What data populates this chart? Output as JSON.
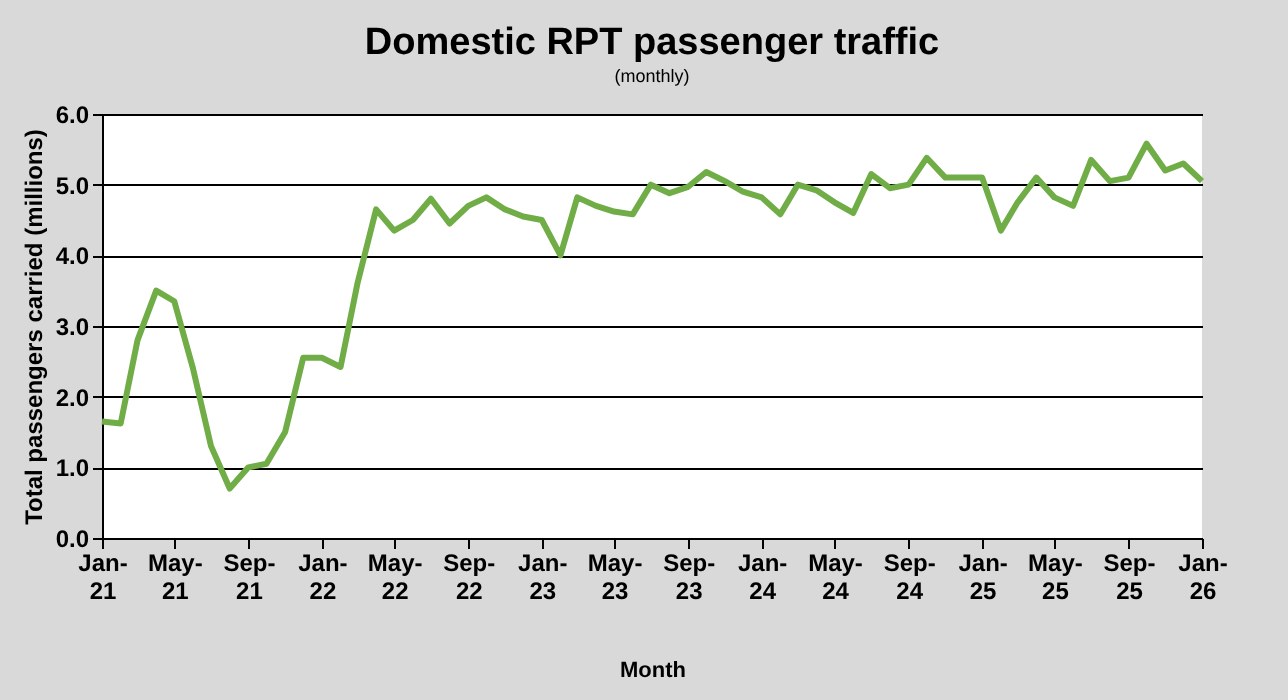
{
  "chart_data": {
    "type": "line",
    "title": "Domestic RPT passenger traffic",
    "subtitle": "(monthly)",
    "xlabel": "Month",
    "ylabel": "Total passengers carried (millions)",
    "x": [
      "2021-01",
      "2021-02",
      "2021-03",
      "2021-04",
      "2021-05",
      "2021-06",
      "2021-07",
      "2021-08",
      "2021-09",
      "2021-10",
      "2021-11",
      "2021-12",
      "2022-01",
      "2022-02",
      "2022-03",
      "2022-04",
      "2022-05",
      "2022-06",
      "2022-07",
      "2022-08",
      "2022-09",
      "2022-10",
      "2022-11",
      "2022-12",
      "2023-01",
      "2023-02",
      "2023-03",
      "2023-04",
      "2023-05",
      "2023-06",
      "2023-07",
      "2023-08",
      "2023-09",
      "2023-10",
      "2023-11",
      "2023-12",
      "2024-01",
      "2024-02",
      "2024-03",
      "2024-04",
      "2024-05",
      "2024-06",
      "2024-07",
      "2024-08",
      "2024-09",
      "2024-10",
      "2024-11",
      "2024-12",
      "2025-01",
      "2025-02",
      "2025-03",
      "2025-04",
      "2025-05",
      "2025-06",
      "2025-07",
      "2025-08",
      "2025-09",
      "2025-10",
      "2025-11",
      "2025-12",
      "2026-01"
    ],
    "series": [
      {
        "color": "#70ad47",
        "values": [
          1.65,
          1.62,
          2.8,
          3.5,
          3.35,
          2.4,
          1.3,
          0.7,
          1.0,
          1.05,
          1.5,
          2.55,
          2.55,
          2.42,
          3.6,
          4.65,
          4.35,
          4.5,
          4.8,
          4.45,
          4.7,
          4.82,
          4.65,
          4.55,
          4.5,
          4.0,
          4.82,
          4.7,
          4.62,
          4.58,
          5.0,
          4.88,
          4.97,
          5.18,
          5.05,
          4.9,
          4.82,
          4.58,
          5.0,
          4.92,
          4.75,
          4.6,
          5.15,
          4.95,
          5.0,
          5.38,
          5.1,
          5.1,
          5.1,
          4.35,
          4.75,
          5.1,
          4.82,
          4.7,
          5.35,
          5.05,
          5.1,
          5.58,
          5.2,
          5.3,
          5.05
        ]
      }
    ],
    "xlim": [
      "2021-01",
      "2026-01"
    ],
    "xticks": [
      {
        "value": "2021-01",
        "label": "Jan-21"
      },
      {
        "value": "2021-05",
        "label": "May-21"
      },
      {
        "value": "2021-09",
        "label": "Sep-21"
      },
      {
        "value": "2022-01",
        "label": "Jan-22"
      },
      {
        "value": "2022-05",
        "label": "May-22"
      },
      {
        "value": "2022-09",
        "label": "Sep-22"
      },
      {
        "value": "2023-01",
        "label": "Jan-23"
      },
      {
        "value": "2023-05",
        "label": "May-23"
      },
      {
        "value": "2023-09",
        "label": "Sep-23"
      },
      {
        "value": "2024-01",
        "label": "Jan-24"
      },
      {
        "value": "2024-05",
        "label": "May-24"
      },
      {
        "value": "2024-09",
        "label": "Sep-24"
      },
      {
        "value": "2025-01",
        "label": "Jan-25"
      },
      {
        "value": "2025-05",
        "label": "May-25"
      },
      {
        "value": "2025-09",
        "label": "Sep-25"
      },
      {
        "value": "2026-01",
        "label": "Jan-26"
      }
    ],
    "ylim": [
      0,
      6
    ],
    "yticks": [
      {
        "value": 0,
        "label": "0.0"
      },
      {
        "value": 1,
        "label": "1.0"
      },
      {
        "value": 2,
        "label": "2.0"
      },
      {
        "value": 3,
        "label": "3.0"
      },
      {
        "value": 4,
        "label": "4.0"
      },
      {
        "value": 5,
        "label": "5.0"
      },
      {
        "value": 6,
        "label": "6.0"
      }
    ],
    "grid": "y",
    "marker": "none",
    "line_style": "solid"
  }
}
